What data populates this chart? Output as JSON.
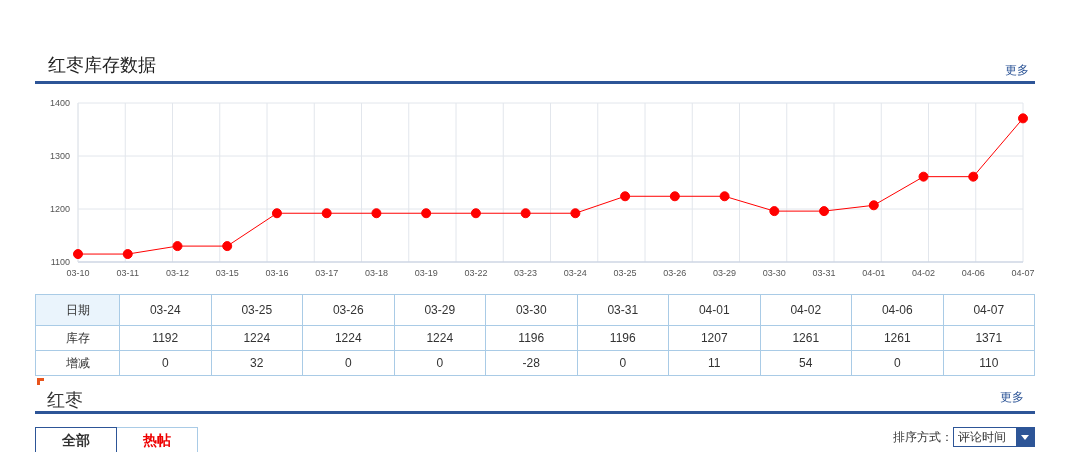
{
  "chart_data": [
    {
      "type": "line",
      "title": "红枣库存数据",
      "annotations": [
        "更多"
      ],
      "categories": [
        "03-10",
        "03-11",
        "03-12",
        "03-15",
        "03-16",
        "03-17",
        "03-18",
        "03-19",
        "03-22",
        "03-23",
        "03-24",
        "03-25",
        "03-26",
        "03-29",
        "03-30",
        "03-31",
        "04-01",
        "04-02",
        "04-06",
        "04-07"
      ],
      "series": [
        {
          "color": "#ff0000",
          "values": [
            1115,
            1115,
            1130,
            1130,
            1192,
            1192,
            1192,
            1192,
            1192,
            1192,
            1192,
            1224,
            1224,
            1224,
            1196,
            1196,
            1207,
            1261,
            1261,
            1371
          ]
        }
      ],
      "ylim": [
        1100,
        1400
      ],
      "yticks": [
        1100,
        1200,
        1300,
        1400
      ],
      "grid": true,
      "marker": "circle"
    },
    {
      "type": "other",
      "xlabel": "日期",
      "data_labels": true,
      "categories": [
        "03-24",
        "03-25",
        "03-26",
        "03-29",
        "03-30",
        "03-31",
        "04-01",
        "04-02",
        "04-06",
        "04-07"
      ],
      "series": [
        {
          "name": "库存",
          "values": [
            1192,
            1224,
            1224,
            1224,
            1196,
            1196,
            1207,
            1261,
            1261,
            1371
          ]
        },
        {
          "name": "增减",
          "values": [
            0,
            32,
            0,
            0,
            -28,
            0,
            11,
            54,
            0,
            110
          ]
        }
      ]
    },
    {
      "type": "other",
      "title": "红枣",
      "annotations": [
        "更多",
        "全部",
        "热帖",
        "排序方式：",
        "评论时间"
      ]
    }
  ]
}
